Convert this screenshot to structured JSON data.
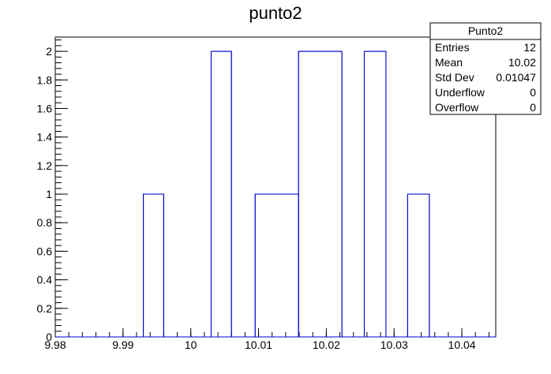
{
  "chart_data": {
    "type": "bar",
    "title": "punto2",
    "xlabel": "",
    "ylabel": "",
    "xlim": [
      9.98,
      10.045
    ],
    "ylim": [
      0,
      2.1
    ],
    "bins": [
      {
        "low": 9.993,
        "high": 9.996,
        "count": 1
      },
      {
        "low": 10.003,
        "high": 10.006,
        "count": 2
      },
      {
        "low": 10.0095,
        "high": 10.0159,
        "count": 1
      },
      {
        "low": 10.0159,
        "high": 10.0223,
        "count": 2
      },
      {
        "low": 10.0256,
        "high": 10.0288,
        "count": 2
      },
      {
        "low": 10.032,
        "high": 10.0352,
        "count": 1
      }
    ],
    "x_ticks": [
      {
        "value": 9.98,
        "label": "9.98"
      },
      {
        "value": 9.99,
        "label": "9.99"
      },
      {
        "value": 10.0,
        "label": "10"
      },
      {
        "value": 10.01,
        "label": "10.01"
      },
      {
        "value": 10.02,
        "label": "10.02"
      },
      {
        "value": 10.03,
        "label": "10.03"
      },
      {
        "value": 10.04,
        "label": "10.04"
      }
    ],
    "y_ticks": [
      {
        "value": 0,
        "label": "0"
      },
      {
        "value": 0.2,
        "label": "0.2"
      },
      {
        "value": 0.4,
        "label": "0.4"
      },
      {
        "value": 0.6,
        "label": "0.6"
      },
      {
        "value": 0.8,
        "label": "0.8"
      },
      {
        "value": 1,
        "label": "1"
      },
      {
        "value": 1.2,
        "label": "1.2"
      },
      {
        "value": 1.4,
        "label": "1.4"
      },
      {
        "value": 1.6,
        "label": "1.6"
      },
      {
        "value": 1.8,
        "label": "1.8"
      },
      {
        "value": 2,
        "label": "2"
      }
    ],
    "stats_box": {
      "name": "Punto2",
      "rows": [
        {
          "label": "Entries",
          "value": "12"
        },
        {
          "label": "Mean",
          "value": "10.02"
        },
        {
          "label": "Std Dev",
          "value": "0.01047"
        },
        {
          "label": "Underflow",
          "value": "0"
        },
        {
          "label": "Overflow",
          "value": "0"
        }
      ]
    },
    "line_color": "#0000cc",
    "axis_color": "#000000",
    "grid": false
  }
}
